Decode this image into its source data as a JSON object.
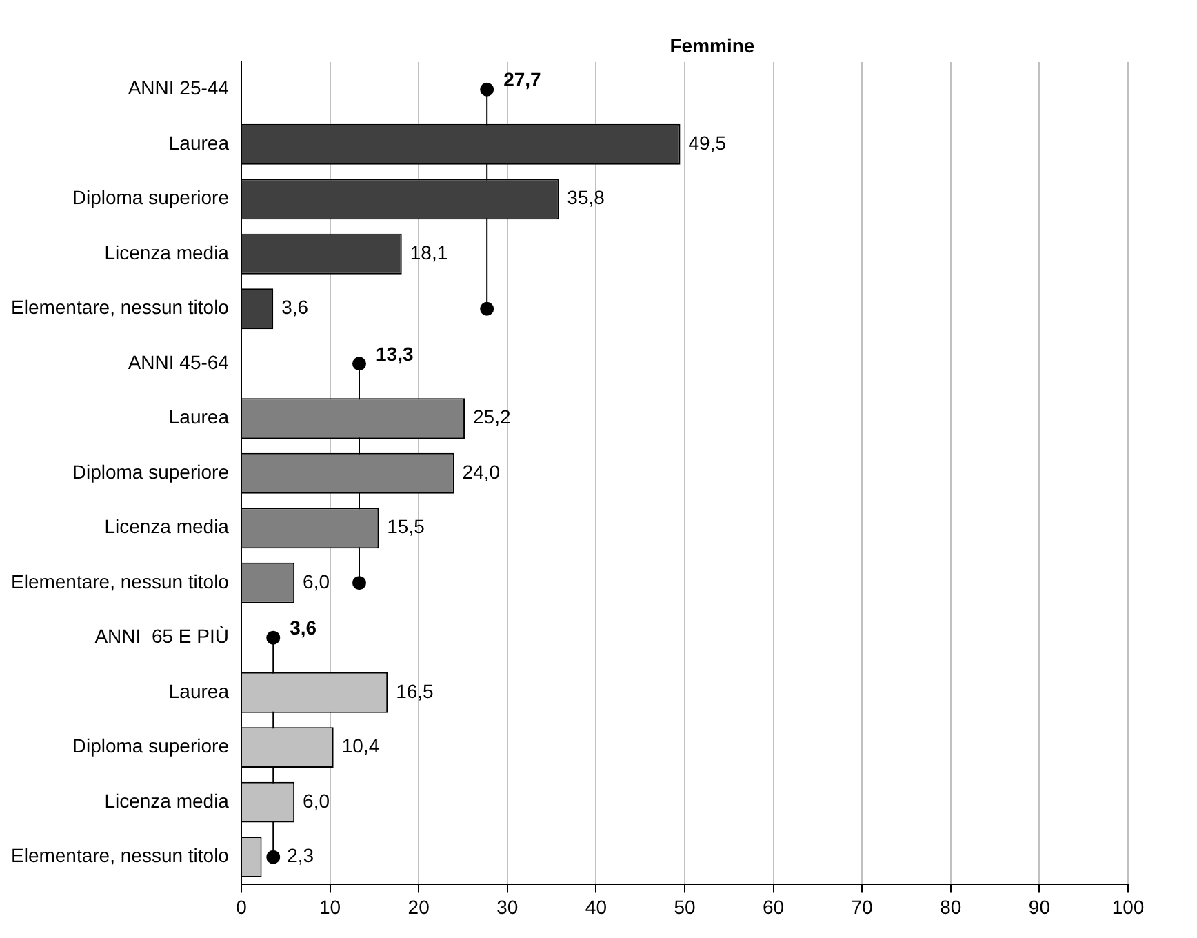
{
  "chart_data": {
    "type": "bar",
    "orientation": "horizontal",
    "title": "Femmine",
    "categories": [
      "ANNI 25-44",
      "Laurea",
      "Diploma superiore",
      "Licenza media",
      "Elementare, nessun titolo",
      "ANNI 45-64",
      "Laurea",
      "Diploma superiore",
      "Licenza media",
      "Elementare, nessun titolo",
      "ANNI  65 E PIÙ",
      "Laurea",
      "Diploma superiore",
      "Licenza media",
      "Elementare, nessun titolo"
    ],
    "series": [
      {
        "colors": [
          "#404040",
          "#404040",
          "#404040",
          "#404040",
          "#404040",
          "#808080",
          "#808080",
          "#808080",
          "#808080",
          "#808080",
          "#c0c0c0",
          "#c0c0c0",
          "#c0c0c0",
          "#c0c0c0",
          "#c0c0c0"
        ],
        "values": [
          null,
          49.5,
          35.8,
          18.1,
          3.6,
          null,
          25.2,
          24.0,
          15.5,
          6.0,
          null,
          16.5,
          10.4,
          6.0,
          2.3
        ],
        "value_labels": [
          null,
          "49,5",
          "35,8",
          "18,1",
          "3,6",
          null,
          "25,2",
          "24,0",
          "15,5",
          "6,0",
          null,
          "16,5",
          "10,4",
          "6,0",
          "2,3"
        ]
      },
      {
        "type": "line",
        "color": "#000000",
        "values": [
          27.7,
          null,
          null,
          null,
          27.7,
          null,
          null,
          null,
          null,
          null,
          null,
          null,
          null,
          null,
          null
        ],
        "value_labels": [
          "27,7",
          null,
          null,
          null,
          null,
          null,
          null,
          null,
          null,
          null,
          null,
          null,
          null,
          null,
          null
        ]
      },
      {
        "type": "line",
        "color": "#000000",
        "values": [
          null,
          null,
          null,
          null,
          null,
          13.3,
          null,
          null,
          null,
          13.3,
          null,
          null,
          null,
          null,
          null
        ],
        "value_labels": [
          null,
          null,
          null,
          null,
          null,
          "13,3",
          null,
          null,
          null,
          null,
          null,
          null,
          null,
          null,
          null
        ]
      },
      {
        "type": "line",
        "color": "#000000",
        "values": [
          null,
          null,
          null,
          null,
          null,
          null,
          null,
          null,
          null,
          null,
          3.6,
          null,
          null,
          null,
          3.6
        ],
        "value_labels": [
          null,
          null,
          null,
          null,
          null,
          null,
          null,
          null,
          null,
          null,
          "3,6",
          null,
          null,
          null,
          null
        ]
      }
    ],
    "xlim": [
      0,
      100
    ],
    "xticks": [
      0,
      10,
      20,
      30,
      40,
      50,
      60,
      70,
      80,
      90,
      100
    ],
    "grid": "x",
    "legend": false,
    "marker": "circle",
    "line_style": "solid"
  }
}
